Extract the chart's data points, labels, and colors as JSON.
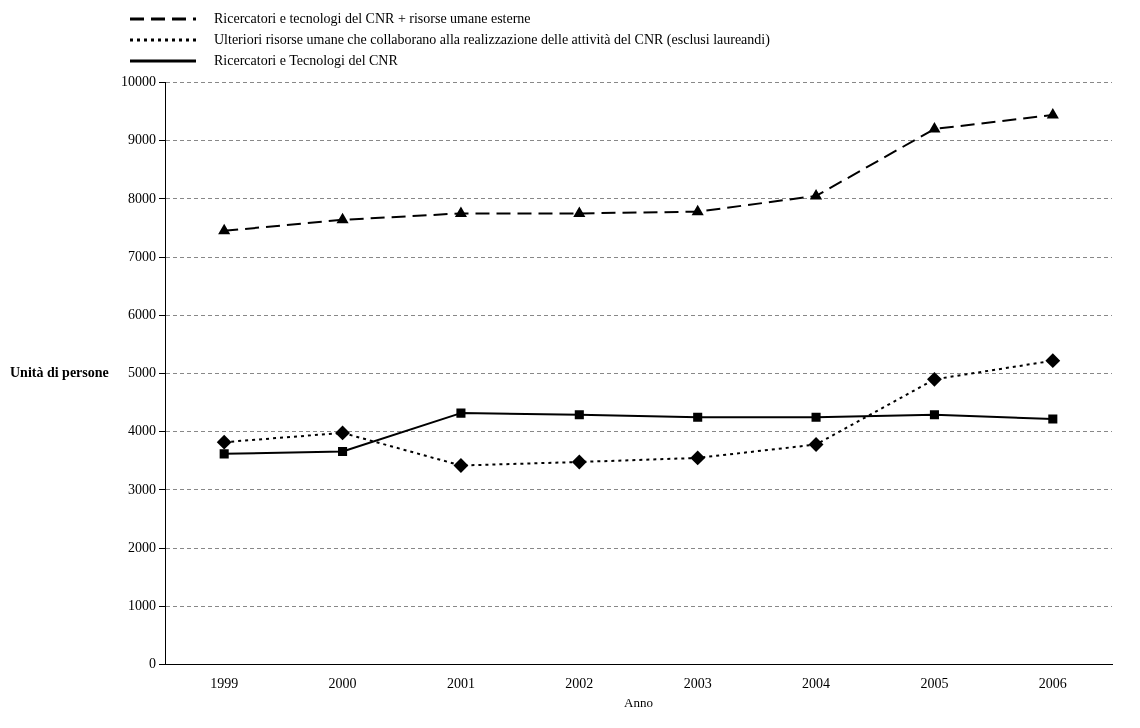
{
  "chart_data": {
    "type": "line",
    "xlabel": "Anno",
    "ylabel": "Unità di persone",
    "categories": [
      "1999",
      "2000",
      "2001",
      "2002",
      "2003",
      "2004",
      "2005",
      "2006"
    ],
    "series": [
      {
        "name": "Ricercatori e tecnologi del CNR + risorse umane esterne",
        "color": "#000000",
        "marker": "triangle",
        "line_style": "dashed",
        "values": [
          7450,
          7640,
          7750,
          7750,
          7780,
          8050,
          9200,
          9440
        ]
      },
      {
        "name": "Ulteriori risorse umane che collaborano alla realizzazione delle attività del CNR (esclusi laureandi)",
        "color": "#000000",
        "marker": "diamond",
        "line_style": "dotted",
        "values": [
          3820,
          3980,
          3420,
          3480,
          3550,
          3780,
          4900,
          5220
        ]
      },
      {
        "name": "Ricercatori e Tecnologi del CNR",
        "color": "#000000",
        "marker": "square",
        "line_style": "solid",
        "values": [
          3620,
          3660,
          4320,
          4290,
          4250,
          4250,
          4290,
          4220
        ]
      }
    ],
    "ylim": [
      0,
      10000
    ],
    "yticks": [
      0,
      1000,
      2000,
      3000,
      4000,
      5000,
      6000,
      7000,
      8000,
      9000,
      10000
    ],
    "grid": "y",
    "legend": "top left"
  }
}
